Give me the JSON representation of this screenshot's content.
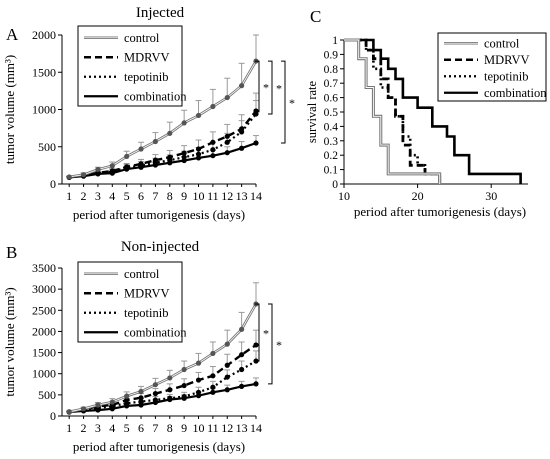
{
  "panels": {
    "A": {
      "letter": "A",
      "title": "Injected"
    },
    "B": {
      "letter": "B",
      "title": "Non-injected"
    },
    "C": {
      "letter": "C"
    }
  },
  "chart_data": [
    {
      "id": "A",
      "type": "line",
      "title": "Injected",
      "xlabel": "period after tumorigenesis (days)",
      "ylabel": "tumor volume (mm³)",
      "categories": [
        "1",
        "2",
        "3",
        "4",
        "5",
        "6",
        "7",
        "8",
        "9",
        "10",
        "11",
        "12",
        "13",
        "14"
      ],
      "ylim": [
        0,
        2000
      ],
      "yticks": [
        0,
        500,
        1000,
        1500,
        2000
      ],
      "legend_position": "top-left",
      "series": [
        {
          "name": "control",
          "style": "gray-double",
          "values": [
            95,
            125,
            195,
            245,
            370,
            470,
            570,
            680,
            820,
            920,
            1040,
            1160,
            1320,
            1650
          ],
          "errors": [
            10,
            25,
            30,
            50,
            70,
            90,
            120,
            150,
            170,
            200,
            230,
            260,
            300,
            350
          ]
        },
        {
          "name": "MDRVV",
          "style": "dashed",
          "values": [
            90,
            110,
            150,
            175,
            230,
            270,
            320,
            360,
            415,
            470,
            560,
            640,
            740,
            980
          ],
          "errors": [
            10,
            20,
            25,
            35,
            45,
            60,
            75,
            90,
            100,
            120,
            140,
            160,
            190,
            240
          ]
        },
        {
          "name": "tepotinib",
          "style": "dotted",
          "values": [
            90,
            110,
            145,
            165,
            220,
            250,
            285,
            320,
            360,
            400,
            460,
            560,
            700,
            940
          ],
          "errors": [
            10,
            20,
            25,
            30,
            40,
            50,
            60,
            70,
            80,
            90,
            100,
            120,
            150,
            180
          ]
        },
        {
          "name": "combination",
          "style": "solid",
          "values": [
            90,
            105,
            135,
            145,
            200,
            225,
            255,
            285,
            315,
            350,
            380,
            420,
            480,
            550
          ],
          "errors": [
            10,
            15,
            20,
            25,
            35,
            40,
            45,
            50,
            55,
            60,
            70,
            80,
            90,
            100
          ]
        }
      ],
      "significance": [
        "*",
        "*",
        "*"
      ]
    },
    {
      "id": "B",
      "type": "line",
      "title": "Non-injected",
      "xlabel": "period after tumorigenesis (days)",
      "ylabel": "tumor volume (mm³)",
      "categories": [
        "1",
        "2",
        "3",
        "4",
        "5",
        "6",
        "7",
        "8",
        "9",
        "10",
        "11",
        "12",
        "13",
        "14"
      ],
      "ylim": [
        0,
        3500
      ],
      "yticks": [
        0,
        500,
        1000,
        1500,
        2000,
        2500,
        3000,
        3500
      ],
      "legend_position": "top-left",
      "series": [
        {
          "name": "control",
          "style": "gray-double",
          "values": [
            100,
            170,
            260,
            330,
            470,
            580,
            740,
            900,
            1100,
            1250,
            1480,
            1700,
            2050,
            2650
          ],
          "errors": [
            20,
            40,
            60,
            80,
            100,
            120,
            150,
            180,
            200,
            230,
            270,
            330,
            400,
            500
          ]
        },
        {
          "name": "MDRVV",
          "style": "dashed",
          "values": [
            95,
            150,
            230,
            260,
            380,
            430,
            530,
            620,
            720,
            850,
            950,
            1200,
            1450,
            1680
          ],
          "errors": [
            15,
            35,
            55,
            65,
            80,
            100,
            120,
            140,
            160,
            180,
            220,
            260,
            300,
            350
          ]
        },
        {
          "name": "tepotinib",
          "style": "dotted",
          "values": [
            95,
            130,
            190,
            230,
            300,
            340,
            380,
            420,
            460,
            560,
            680,
            920,
            1100,
            1300
          ],
          "errors": [
            15,
            25,
            40,
            50,
            60,
            70,
            80,
            90,
            100,
            120,
            140,
            170,
            200,
            240
          ]
        },
        {
          "name": "combination",
          "style": "solid",
          "values": [
            95,
            120,
            140,
            170,
            240,
            260,
            320,
            390,
            420,
            480,
            560,
            620,
            700,
            760
          ],
          "errors": [
            15,
            20,
            25,
            30,
            45,
            50,
            60,
            70,
            80,
            90,
            100,
            110,
            120,
            140
          ]
        }
      ],
      "significance": [
        "*",
        "*"
      ]
    },
    {
      "id": "C",
      "type": "line",
      "step": true,
      "xlabel": "period after tumorigenesis (days)",
      "ylabel": "survival rate",
      "xlim": [
        10,
        35
      ],
      "xticks": [
        10,
        20,
        30
      ],
      "ylim": [
        0,
        1
      ],
      "yticks": [
        0,
        0.1,
        0.2,
        0.3,
        0.4,
        0.5,
        0.6,
        0.7,
        0.8,
        0.9,
        1
      ],
      "legend_position": "top-right",
      "series": [
        {
          "name": "control",
          "style": "gray-double",
          "x": [
            10,
            12,
            13,
            14,
            15,
            16,
            17,
            21,
            23
          ],
          "y": [
            1,
            0.87,
            0.67,
            0.47,
            0.27,
            0.07,
            0.07,
            0.07,
            0.0
          ]
        },
        {
          "name": "MDRVV",
          "style": "dashed",
          "x": [
            10,
            13,
            14,
            15,
            16,
            17,
            18,
            19,
            21,
            23
          ],
          "y": [
            1,
            0.93,
            0.87,
            0.73,
            0.6,
            0.47,
            0.27,
            0.13,
            0.07,
            0.0
          ]
        },
        {
          "name": "tepotinib",
          "style": "dotted",
          "x": [
            10,
            13,
            14,
            15,
            16,
            17,
            18,
            19,
            20,
            21,
            23
          ],
          "y": [
            1,
            0.93,
            0.8,
            0.67,
            0.6,
            0.47,
            0.33,
            0.2,
            0.13,
            0.07,
            0.0
          ]
        },
        {
          "name": "combination",
          "style": "solid",
          "x": [
            10,
            14,
            15,
            16,
            17,
            18,
            20,
            22,
            24,
            25,
            27,
            34
          ],
          "y": [
            1,
            0.93,
            0.87,
            0.8,
            0.73,
            0.6,
            0.53,
            0.4,
            0.33,
            0.2,
            0.07,
            0.0
          ]
        }
      ]
    }
  ]
}
